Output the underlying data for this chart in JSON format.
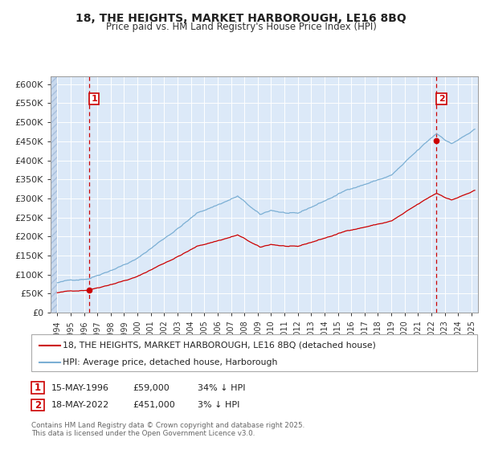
{
  "title1": "18, THE HEIGHTS, MARKET HARBOROUGH, LE16 8BQ",
  "title2": "Price paid vs. HM Land Registry's House Price Index (HPI)",
  "ylim": [
    0,
    620000
  ],
  "xlim": [
    1993.5,
    2025.5
  ],
  "yticks": [
    0,
    50000,
    100000,
    150000,
    200000,
    250000,
    300000,
    350000,
    400000,
    450000,
    500000,
    550000,
    600000
  ],
  "ytick_labels": [
    "£0",
    "£50K",
    "£100K",
    "£150K",
    "£200K",
    "£250K",
    "£300K",
    "£350K",
    "£400K",
    "£450K",
    "£500K",
    "£550K",
    "£600K"
  ],
  "xticks": [
    1994,
    1995,
    1996,
    1997,
    1998,
    1999,
    2000,
    2001,
    2002,
    2003,
    2004,
    2005,
    2006,
    2007,
    2008,
    2009,
    2010,
    2011,
    2012,
    2013,
    2014,
    2015,
    2016,
    2017,
    2018,
    2019,
    2020,
    2021,
    2022,
    2023,
    2024,
    2025
  ],
  "bg_color": "#dce9f8",
  "grid_color": "#ffffff",
  "sale1_x": 1996.37,
  "sale1_y": 59000,
  "sale2_x": 2022.38,
  "sale2_y": 451000,
  "sale_color": "#cc0000",
  "hpi_color": "#7bafd4",
  "vline_color": "#cc0000",
  "legend_label1": "18, THE HEIGHTS, MARKET HARBOROUGH, LE16 8BQ (detached house)",
  "legend_label2": "HPI: Average price, detached house, Harborough",
  "footnote": "Contains HM Land Registry data © Crown copyright and database right 2025.\nThis data is licensed under the Open Government Licence v3.0.",
  "hpi_base_y": 59000,
  "hpi_at_sale1": 59000,
  "hpi_at_sale2": 451000
}
